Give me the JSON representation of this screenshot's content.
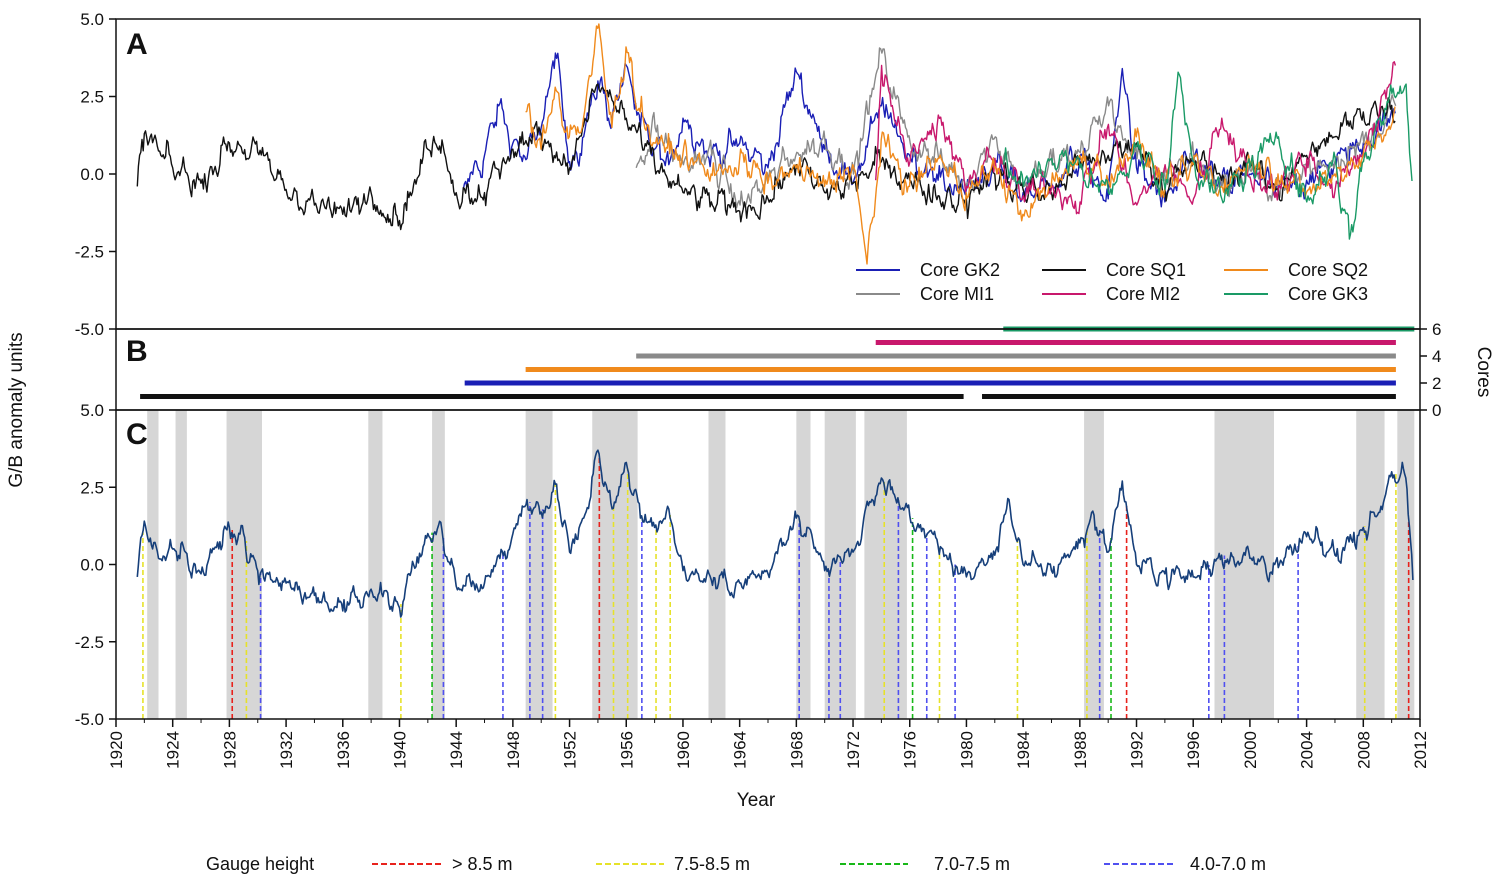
{
  "chart_data": [
    {
      "panel": "A",
      "type": "line",
      "ylim": [
        -5.0,
        5.0
      ],
      "yticks": [
        "5.0",
        "2.5",
        "0.0",
        "-2.5",
        "-5.0"
      ],
      "ytick_values": [
        5.0,
        2.5,
        0.0,
        -2.5,
        -5.0
      ],
      "legend_position": "bottom-right",
      "series": [
        {
          "name": "Core GK2",
          "color": "#1a1fb5",
          "range": [
            1944.5,
            2010.3
          ],
          "x": [
            1944.5,
            1946,
            1947,
            1948,
            1949,
            1950,
            1951,
            1952,
            1953,
            1954,
            1955,
            1956,
            1957,
            1958,
            1959,
            1960,
            1962,
            1964,
            1966,
            1968,
            1970,
            1972,
            1974,
            1976,
            1978,
            1980,
            1982,
            1984,
            1986,
            1988,
            1990,
            1991,
            1992,
            1994,
            1996,
            1998,
            2000,
            2002,
            2004,
            2006,
            2008,
            2010.3
          ],
          "y": [
            -0.5,
            0.6,
            2.2,
            1.0,
            0.5,
            1.5,
            3.9,
            0.4,
            1.2,
            3.0,
            1.8,
            3.5,
            1.5,
            0.8,
            0.3,
            1.8,
            0.6,
            1.0,
            0.2,
            3.3,
            0.8,
            -0.3,
            2.2,
            0.6,
            -0.2,
            -0.5,
            0.3,
            -0.6,
            -0.3,
            0.5,
            -0.8,
            3.4,
            0.2,
            -0.9,
            0.5,
            -0.4,
            0.0,
            -0.6,
            -0.2,
            0.4,
            1.0,
            2.0
          ]
        },
        {
          "name": "Core MI1",
          "color": "#8a8a8a",
          "range": [
            1956.7,
            2010.3
          ],
          "x": [
            1956.7,
            1958,
            1960,
            1962,
            1964,
            1966,
            1968,
            1970,
            1972,
            1974,
            1976,
            1978,
            1980,
            1982,
            1984,
            1986,
            1988,
            1990,
            1992,
            1994,
            1996,
            1998,
            2000,
            2002,
            2004,
            2006,
            2008,
            2010.3
          ],
          "y": [
            0.2,
            1.5,
            0.3,
            0.6,
            -1.0,
            -0.2,
            0.7,
            1.0,
            0.0,
            3.9,
            1.0,
            0.5,
            -0.3,
            1.2,
            -0.4,
            0.3,
            0.7,
            2.2,
            0.5,
            -0.2,
            0.6,
            -0.4,
            0.1,
            -0.5,
            0.2,
            0.5,
            1.0,
            2.2
          ]
        },
        {
          "name": "Core SQ1",
          "color": "#111111",
          "range": [
            1921.5,
            2010.3
          ],
          "x": [
            1921.5,
            1922,
            1924,
            1926,
            1928,
            1930,
            1932,
            1934,
            1936,
            1938,
            1940,
            1942,
            1943,
            1944,
            1946,
            1948,
            1950,
            1952,
            1954,
            1956,
            1958,
            1960,
            1962,
            1964,
            1966,
            1968,
            1970,
            1972,
            1974,
            1976,
            1978,
            1980,
            1982,
            1984,
            1986,
            1988,
            1990,
            1992,
            1994,
            1996,
            1998,
            2000,
            2002,
            2004,
            2006,
            2008,
            2010.3
          ],
          "y": [
            -0.4,
            1.3,
            0.2,
            -0.3,
            1.0,
            0.7,
            -0.5,
            -1.0,
            -1.3,
            -0.6,
            -1.5,
            0.8,
            1.1,
            -0.6,
            -0.6,
            0.8,
            1.3,
            0.2,
            2.9,
            1.8,
            0.3,
            -0.6,
            -0.9,
            -1.2,
            -0.8,
            0.3,
            -0.6,
            -0.3,
            0.4,
            -0.2,
            -0.7,
            -0.8,
            0.0,
            -0.5,
            -0.6,
            0.3,
            0.6,
            1.0,
            -0.5,
            0.4,
            -0.2,
            0.3,
            -0.5,
            0.6,
            1.2,
            2.0,
            2.2
          ]
        },
        {
          "name": "Core MI2",
          "color": "#c8186c",
          "range": [
            1973.6,
            2010.3
          ],
          "x": [
            1973.6,
            1974,
            1976,
            1978,
            1980,
            1982,
            1984,
            1986,
            1988,
            1990,
            1992,
            1994,
            1996,
            1998,
            2000,
            2002,
            2004,
            2006,
            2008,
            2010.3
          ],
          "y": [
            -0.2,
            3.5,
            0.4,
            1.9,
            -0.4,
            0.5,
            -0.7,
            -0.4,
            -0.9,
            1.6,
            -1.0,
            0.3,
            -0.8,
            1.8,
            -0.1,
            -0.4,
            0.5,
            -0.5,
            0.7,
            3.5
          ]
        },
        {
          "name": "Core SQ2",
          "color": "#f08a1c",
          "range": [
            1948.9,
            2010.3
          ],
          "x": [
            1948.9,
            1950,
            1951,
            1952,
            1953,
            1954,
            1955,
            1956,
            1957,
            1958,
            1960,
            1962,
            1964,
            1966,
            1968,
            1970,
            1972,
            1973,
            1974,
            1976,
            1978,
            1980,
            1982,
            1984,
            1986,
            1988,
            1990,
            1992,
            1994,
            1996,
            1998,
            2000,
            2002,
            2004,
            2006,
            2008,
            2010.3
          ],
          "y": [
            2.0,
            0.8,
            2.8,
            1.2,
            1.8,
            4.7,
            1.5,
            4.1,
            2.0,
            1.0,
            0.6,
            0.0,
            0.4,
            -0.3,
            0.2,
            -0.4,
            0.3,
            -2.9,
            1.1,
            -0.4,
            0.5,
            -0.6,
            0.2,
            -1.3,
            -0.4,
            0.6,
            -0.2,
            1.2,
            -0.5,
            0.3,
            -0.4,
            0.4,
            0.0,
            -0.6,
            0.0,
            0.6,
            2.0
          ]
        },
        {
          "name": "Core GK3",
          "color": "#1a9a66",
          "range": [
            1982.6,
            2011.5
          ],
          "x": [
            1982.6,
            1984,
            1986,
            1988,
            1990,
            1992,
            1994,
            1995,
            1996,
            1998,
            2000,
            2002,
            2004,
            2006,
            2007,
            2008,
            2010,
            2011,
            2011.5
          ],
          "y": [
            0.3,
            -0.4,
            0.5,
            0.2,
            -0.6,
            0.9,
            -0.5,
            3.2,
            0.4,
            -0.8,
            0.2,
            1.2,
            -0.9,
            0.5,
            -2.1,
            0.4,
            2.6,
            2.9,
            -0.5
          ]
        }
      ]
    },
    {
      "panel": "B",
      "type": "bar",
      "ylabel": "Cores",
      "ylim": [
        0,
        6
      ],
      "yticks": [
        "6",
        "4",
        "2",
        "0"
      ],
      "ytick_values": [
        6,
        4,
        2,
        0
      ],
      "coverage": [
        {
          "core": "Core GK3",
          "color": "#1a9a66",
          "level": 6,
          "segments": [
            [
              1982.6,
              2011.6
            ]
          ]
        },
        {
          "core": "Core MI2",
          "color": "#c8186c",
          "level": 5,
          "segments": [
            [
              1973.6,
              2010.3
            ]
          ]
        },
        {
          "core": "Core MI1",
          "color": "#8a8a8a",
          "level": 4,
          "segments": [
            [
              1956.7,
              2010.3
            ]
          ]
        },
        {
          "core": "Core SQ2",
          "color": "#f08a1c",
          "level": 3,
          "segments": [
            [
              1948.9,
              2010.3
            ]
          ]
        },
        {
          "core": "Core GK2",
          "color": "#1a1fb5",
          "level": 2,
          "segments": [
            [
              1944.6,
              2010.3
            ]
          ]
        },
        {
          "core": "Core SQ1",
          "color": "#111111",
          "level": 1,
          "segments": [
            [
              1921.7,
              1979.8
            ],
            [
              1981.1,
              2010.3
            ]
          ]
        }
      ]
    },
    {
      "panel": "C",
      "type": "line",
      "xlabel": "Year",
      "xlim": [
        1920,
        2012
      ],
      "xticks": [
        "1920",
        "1924",
        "1928",
        "1932",
        "1936",
        "1940",
        "1944",
        "1948",
        "1952",
        "1956",
        "1960",
        "1964",
        "1968",
        "1972",
        "1976",
        "1980",
        "1984",
        "1988",
        "1992",
        "1996",
        "2000",
        "2004",
        "2008",
        "2012"
      ],
      "xtick_values": [
        1920,
        1924,
        1928,
        1932,
        1936,
        1940,
        1944,
        1948,
        1952,
        1956,
        1960,
        1964,
        1968,
        1972,
        1976,
        1980,
        1984,
        1988,
        1992,
        1996,
        2000,
        2004,
        2008,
        2012
      ],
      "ylim": [
        -5.0,
        5.0
      ],
      "yticks": [
        "5.0",
        "2.5",
        "0.0",
        "-2.5",
        "-5.0"
      ],
      "ytick_values": [
        5.0,
        2.5,
        0.0,
        -2.5,
        -5.0
      ],
      "series": [
        {
          "color": "#163f7a",
          "x": [
            1921.5,
            1922,
            1923,
            1924,
            1926,
            1928,
            1929,
            1930,
            1932,
            1934,
            1936,
            1938,
            1940,
            1942,
            1943,
            1944,
            1946,
            1948,
            1949,
            1950,
            1951,
            1952,
            1953,
            1954,
            1955,
            1956,
            1957,
            1958,
            1959,
            1960,
            1962,
            1964,
            1966,
            1968,
            1970,
            1972,
            1974,
            1976,
            1978,
            1980,
            1982,
            1983,
            1984,
            1986,
            1988,
            1989,
            1990,
            1991,
            1992,
            1994,
            1996,
            1998,
            2000,
            2002,
            2004,
            2006,
            2008,
            2009,
            2010,
            2011,
            2011.5
          ],
          "y": [
            -0.4,
            1.4,
            0.2,
            0.5,
            -0.3,
            1.2,
            1.0,
            -0.2,
            -0.6,
            -1.0,
            -1.5,
            -0.8,
            -1.4,
            1.0,
            1.1,
            -0.7,
            -0.6,
            1.0,
            2.1,
            1.7,
            2.6,
            0.4,
            1.5,
            3.7,
            1.8,
            3.3,
            1.5,
            1.2,
            1.8,
            -0.2,
            -0.5,
            -0.6,
            -0.3,
            1.5,
            -0.2,
            0.4,
            2.8,
            1.6,
            0.6,
            -0.4,
            0.3,
            2.1,
            0.0,
            -0.2,
            0.7,
            1.6,
            0.4,
            2.7,
            0.0,
            -0.3,
            -0.4,
            0.3,
            0.2,
            -0.1,
            0.9,
            0.3,
            1.2,
            1.6,
            3.0,
            2.8,
            -0.5
          ]
        }
      ],
      "shaded_periods": [
        [
          1922.2,
          1923.0
        ],
        [
          1924.2,
          1925.0
        ],
        [
          1927.8,
          1930.3
        ],
        [
          1937.8,
          1938.8
        ],
        [
          1942.3,
          1943.2
        ],
        [
          1948.9,
          1950.8
        ],
        [
          1953.6,
          1956.8
        ],
        [
          1961.8,
          1963.0
        ],
        [
          1968.0,
          1969.0
        ],
        [
          1970.0,
          1972.2
        ],
        [
          1972.8,
          1975.8
        ],
        [
          1988.3,
          1989.7
        ],
        [
          1997.5,
          2001.7
        ],
        [
          2007.5,
          2009.5
        ],
        [
          2010.4,
          2011.6
        ]
      ],
      "flood_lines": [
        {
          "year": 1921.9,
          "band": "7.5-8.5 m"
        },
        {
          "year": 1928.2,
          "band": "> 8.5 m"
        },
        {
          "year": 1929.2,
          "band": "7.5-8.5 m"
        },
        {
          "year": 1930.2,
          "band": "4.0-7.0 m"
        },
        {
          "year": 1940.1,
          "band": "7.5-8.5 m"
        },
        {
          "year": 1942.3,
          "band": "7.0-7.5 m"
        },
        {
          "year": 1943.1,
          "band": "4.0-7.0 m"
        },
        {
          "year": 1947.3,
          "band": "4.0-7.0 m"
        },
        {
          "year": 1949.2,
          "band": "4.0-7.0 m"
        },
        {
          "year": 1950.1,
          "band": "4.0-7.0 m"
        },
        {
          "year": 1951.0,
          "band": "7.5-8.5 m"
        },
        {
          "year": 1954.1,
          "band": "> 8.5 m"
        },
        {
          "year": 1955.1,
          "band": "7.5-8.5 m"
        },
        {
          "year": 1956.1,
          "band": "7.5-8.5 m"
        },
        {
          "year": 1957.1,
          "band": "4.0-7.0 m"
        },
        {
          "year": 1958.1,
          "band": "7.5-8.5 m"
        },
        {
          "year": 1959.1,
          "band": "7.5-8.5 m"
        },
        {
          "year": 1968.2,
          "band": "4.0-7.0 m"
        },
        {
          "year": 1970.3,
          "band": "4.0-7.0 m"
        },
        {
          "year": 1971.1,
          "band": "4.0-7.0 m"
        },
        {
          "year": 1974.2,
          "band": "7.5-8.5 m"
        },
        {
          "year": 1975.2,
          "band": "4.0-7.0 m"
        },
        {
          "year": 1976.2,
          "band": "7.0-7.5 m"
        },
        {
          "year": 1977.2,
          "band": "4.0-7.0 m"
        },
        {
          "year": 1978.1,
          "band": "7.5-8.5 m"
        },
        {
          "year": 1979.2,
          "band": "4.0-7.0 m"
        },
        {
          "year": 1983.6,
          "band": "7.5-8.5 m"
        },
        {
          "year": 1988.5,
          "band": "7.5-8.5 m"
        },
        {
          "year": 1989.4,
          "band": "4.0-7.0 m"
        },
        {
          "year": 1990.2,
          "band": "7.0-7.5 m"
        },
        {
          "year": 1991.3,
          "band": "> 8.5 m"
        },
        {
          "year": 1997.1,
          "band": "4.0-7.0 m"
        },
        {
          "year": 1998.2,
          "band": "4.0-7.0 m"
        },
        {
          "year": 2003.4,
          "band": "4.0-7.0 m"
        },
        {
          "year": 2008.1,
          "band": "7.5-8.5 m"
        },
        {
          "year": 2010.3,
          "band": "7.5-8.5 m"
        },
        {
          "year": 2011.2,
          "band": "> 8.5 m"
        }
      ]
    }
  ],
  "figure": {
    "ylabel": "G/B anomaly units",
    "panel_labels": [
      "A",
      "B",
      "C"
    ]
  },
  "gauge_legend": {
    "title": "Gauge height",
    "items": [
      {
        "label": "> 8.5 m",
        "color": "#e8221c"
      },
      {
        "label": "7.5-8.5 m",
        "color": "#e6e22a"
      },
      {
        "label": "7.0-7.5 m",
        "color": "#18b818"
      },
      {
        "label": "4.0-7.0 m",
        "color": "#5050f0"
      }
    ]
  },
  "colors": {
    "shading": "#d6d6d6",
    "axis": "#111111"
  }
}
